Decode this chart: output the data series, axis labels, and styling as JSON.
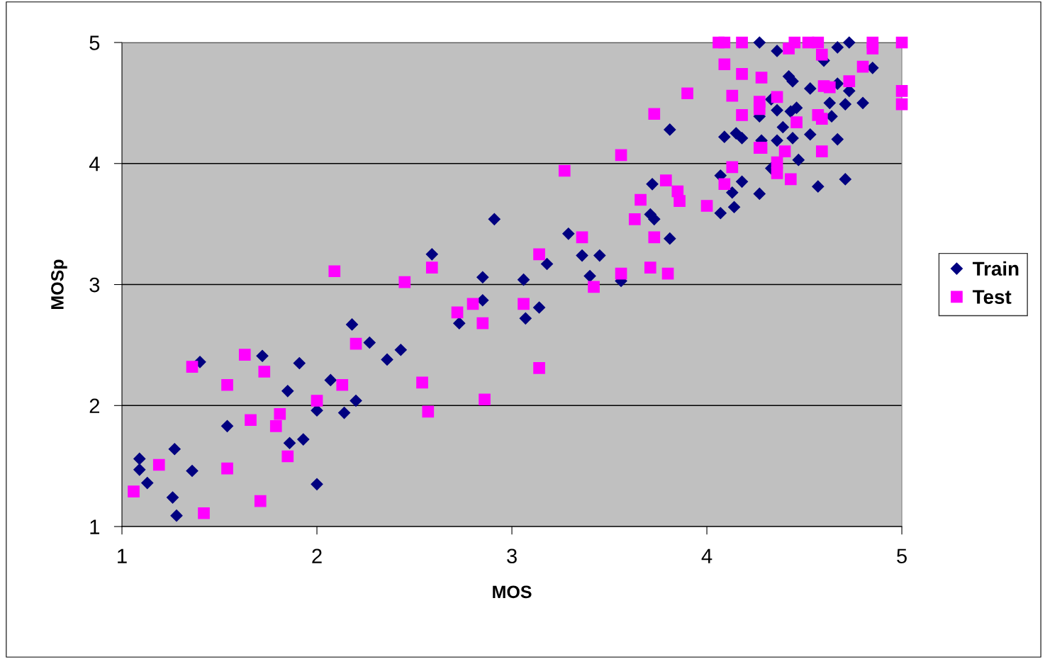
{
  "chart_data": {
    "type": "scatter",
    "xlabel": "MOS",
    "ylabel": "MOSp",
    "xlim": [
      1,
      5
    ],
    "ylim": [
      1,
      5
    ],
    "xticks": [
      1,
      2,
      3,
      4,
      5
    ],
    "yticks": [
      1,
      2,
      3,
      4,
      5
    ],
    "grid": "y",
    "legend": "right",
    "series": [
      {
        "name": "Train",
        "color": "#000080",
        "marker": "diamond",
        "x": [
          1.09,
          1.09,
          1.13,
          1.27,
          1.26,
          1.28,
          1.36,
          1.4,
          1.54,
          1.72,
          1.85,
          1.86,
          1.91,
          1.93,
          2.0,
          2.0,
          2.07,
          2.14,
          2.18,
          2.2,
          2.27,
          2.36,
          2.43,
          2.59,
          2.73,
          2.85,
          2.85,
          2.91,
          3.06,
          3.07,
          3.14,
          3.18,
          3.29,
          3.36,
          3.4,
          3.45,
          3.56,
          3.72,
          3.71,
          3.73,
          3.81,
          3.81,
          4.07,
          4.07,
          4.09,
          4.13,
          4.14,
          4.15,
          4.18,
          4.18,
          4.27,
          4.27,
          4.27,
          4.28,
          4.33,
          4.33,
          4.36,
          4.36,
          4.36,
          4.39,
          4.42,
          4.43,
          4.44,
          4.44,
          4.46,
          4.47,
          4.53,
          4.53,
          4.57,
          4.6,
          4.63,
          4.64,
          4.67,
          4.67,
          4.67,
          4.71,
          4.71,
          4.73,
          4.73,
          4.8,
          4.85
        ],
        "values": [
          1.56,
          1.47,
          1.36,
          1.64,
          1.24,
          1.09,
          1.46,
          2.36,
          1.83,
          2.41,
          2.12,
          1.69,
          2.35,
          1.72,
          1.96,
          1.35,
          2.21,
          1.94,
          2.67,
          2.04,
          2.52,
          2.38,
          2.46,
          3.25,
          2.68,
          3.06,
          2.87,
          3.54,
          3.04,
          2.72,
          2.81,
          3.17,
          3.42,
          3.24,
          3.07,
          3.24,
          3.03,
          3.83,
          3.58,
          3.54,
          4.28,
          3.38,
          3.9,
          3.59,
          4.22,
          3.76,
          3.64,
          4.25,
          4.21,
          3.85,
          5.0,
          4.39,
          3.75,
          4.19,
          3.96,
          4.53,
          4.93,
          4.44,
          4.19,
          4.3,
          4.72,
          4.43,
          4.68,
          4.21,
          4.46,
          4.03,
          4.62,
          4.24,
          3.81,
          4.85,
          4.5,
          4.39,
          4.96,
          4.2,
          4.66,
          4.49,
          3.87,
          4.6,
          5.0,
          4.5,
          4.79
        ]
      },
      {
        "name": "Test",
        "color": "#ff00ff",
        "marker": "square",
        "x": [
          1.06,
          1.19,
          1.36,
          1.42,
          1.54,
          1.54,
          1.63,
          1.66,
          1.71,
          1.73,
          1.79,
          1.81,
          1.85,
          2.0,
          2.09,
          2.13,
          2.2,
          2.45,
          2.54,
          2.57,
          2.59,
          2.72,
          2.8,
          2.85,
          2.86,
          3.06,
          3.14,
          3.14,
          3.27,
          3.36,
          3.42,
          3.56,
          3.56,
          3.63,
          3.66,
          3.71,
          3.73,
          3.73,
          3.79,
          3.8,
          3.85,
          3.86,
          3.9,
          4.0,
          4.06,
          4.09,
          4.09,
          4.09,
          4.13,
          4.13,
          4.18,
          4.18,
          4.18,
          4.27,
          4.27,
          4.27,
          4.28,
          4.28,
          4.36,
          4.36,
          4.36,
          4.4,
          4.42,
          4.43,
          4.45,
          4.46,
          4.52,
          4.57,
          4.57,
          4.59,
          4.59,
          4.59,
          4.6,
          4.63,
          4.73,
          4.8,
          4.85,
          4.85,
          5.0,
          5.0,
          5.0
        ],
        "values": [
          1.29,
          1.51,
          2.32,
          1.11,
          2.17,
          1.48,
          2.42,
          1.88,
          1.21,
          2.28,
          1.83,
          1.93,
          1.58,
          2.04,
          3.11,
          2.17,
          2.51,
          3.02,
          2.19,
          1.95,
          3.14,
          2.77,
          2.84,
          2.68,
          2.05,
          2.84,
          3.25,
          2.31,
          3.94,
          3.39,
          2.98,
          4.07,
          3.09,
          3.54,
          3.7,
          3.14,
          4.41,
          3.39,
          3.86,
          3.09,
          3.77,
          3.69,
          4.58,
          3.65,
          5.0,
          5.0,
          4.82,
          3.83,
          4.56,
          3.97,
          5.0,
          4.74,
          4.4,
          4.51,
          4.45,
          4.13,
          4.71,
          4.13,
          4.55,
          4.01,
          3.92,
          4.1,
          4.95,
          3.87,
          5.0,
          4.34,
          5.0,
          5.0,
          4.4,
          4.9,
          4.1,
          4.37,
          4.64,
          4.63,
          4.68,
          4.8,
          5.0,
          4.95,
          5.0,
          4.6,
          4.49
        ]
      }
    ]
  }
}
